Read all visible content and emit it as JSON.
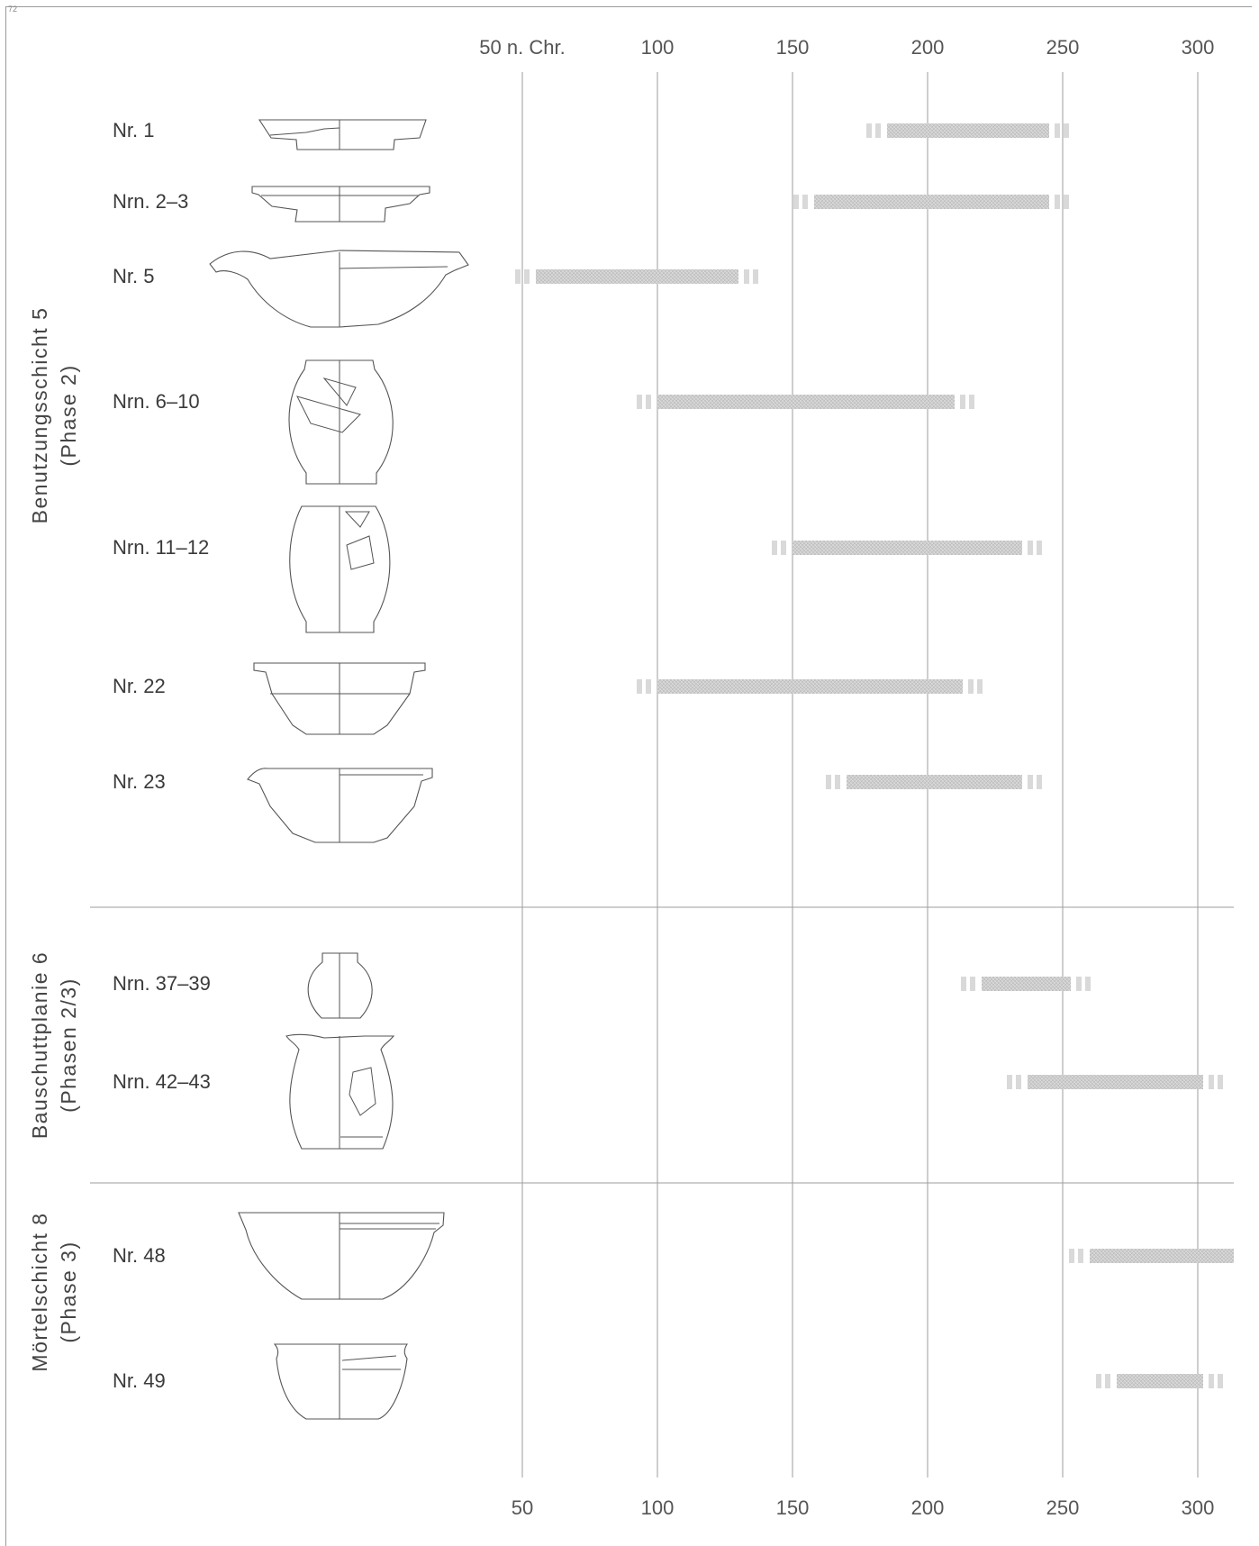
{
  "page_number": "72",
  "chart_data": {
    "type": "timeline",
    "title": "",
    "x_axis": {
      "range": [
        30,
        315
      ],
      "top_tick_labels": [
        "50 n. Chr.",
        "100",
        "150",
        "200",
        "250",
        "300"
      ],
      "bottom_tick_labels": [
        "50",
        "100",
        "150",
        "200",
        "250",
        "300"
      ],
      "tick_values": [
        50,
        100,
        150,
        200,
        250,
        300
      ],
      "grid": true
    },
    "groups": [
      {
        "label_line1": "Benutzungsschicht 5",
        "label_line2": "(Phase 2)",
        "items": [
          {
            "label": "Nr. 1",
            "start": 185,
            "end": 245
          },
          {
            "label": "Nrn. 2–3",
            "start": 158,
            "end": 245
          },
          {
            "label": "Nr. 5",
            "start": 55,
            "end": 130
          },
          {
            "label": "Nrn. 6–10",
            "start": 100,
            "end": 210
          },
          {
            "label": "Nrn. 11–12",
            "start": 150,
            "end": 235
          },
          {
            "label": "Nr. 22",
            "start": 100,
            "end": 213
          },
          {
            "label": "Nr. 23",
            "start": 170,
            "end": 235
          }
        ]
      },
      {
        "label_line1": "Bauschuttplanie 6",
        "label_line2": "(Phasen 2/3)",
        "items": [
          {
            "label": "Nrn. 37–39",
            "start": 220,
            "end": 253
          },
          {
            "label": "Nrn. 42–43",
            "start": 237,
            "end": 302
          }
        ]
      },
      {
        "label_line1": "Mörtelschicht 8",
        "label_line2": "(Phase 3)",
        "items": [
          {
            "label": "Nr. 48",
            "start": 260,
            "end": 315
          },
          {
            "label": "Nr. 49",
            "start": 270,
            "end": 302
          }
        ]
      }
    ],
    "colors": {
      "bar": "#cfcfcf",
      "uncertain": "#d9d9d9",
      "grid": "#9d9d9d"
    }
  }
}
